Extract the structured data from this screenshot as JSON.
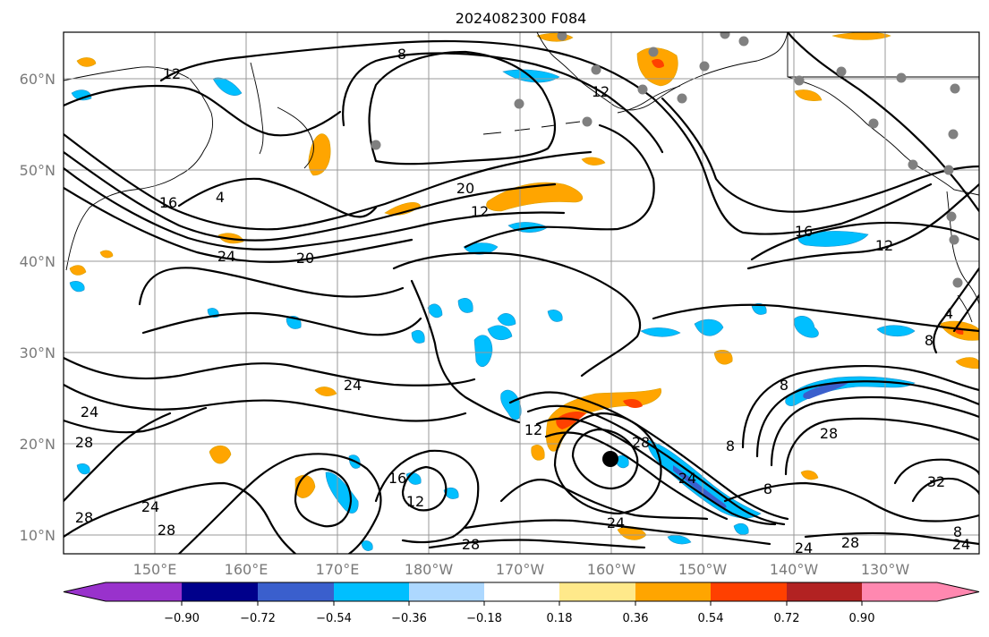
{
  "title": "2024082300 F084",
  "lat_ticks": [
    "60°N",
    "50°N",
    "40°N",
    "30°N",
    "20°N",
    "10°N"
  ],
  "lon_ticks": [
    "150°E",
    "160°E",
    "170°E",
    "180°W",
    "170°W",
    "160°W",
    "150°W",
    "140°W",
    "130°W"
  ],
  "colorbar": {
    "tick_labels": [
      "−0.90",
      "−0.72",
      "−0.54",
      "−0.36",
      "−0.18",
      "0.18",
      "0.36",
      "0.54",
      "0.72",
      "0.90"
    ],
    "colors": [
      "#9932cc",
      "#00008b",
      "#3a5fcd",
      "#00bfff",
      "#add8ff",
      "#ffffff",
      "#ffe98a",
      "#ffa500",
      "#ff4000",
      "#b22222",
      "#ff88b0"
    ]
  },
  "contour_labels": [
    "8",
    "12",
    "12",
    "16",
    "4",
    "24",
    "20",
    "20",
    "12",
    "16",
    "12",
    "24",
    "12",
    "28",
    "24",
    "8",
    "28",
    "8",
    "8",
    "16",
    "12",
    "24",
    "28",
    "24",
    "28",
    "24",
    "28",
    "28",
    "24",
    "28",
    "32",
    "8",
    "8",
    "4",
    "24"
  ],
  "colors": {
    "contour": "#000000",
    "frame": "#000000",
    "grid": "#999999",
    "station": "#808080",
    "storm_center": "#000000"
  }
}
